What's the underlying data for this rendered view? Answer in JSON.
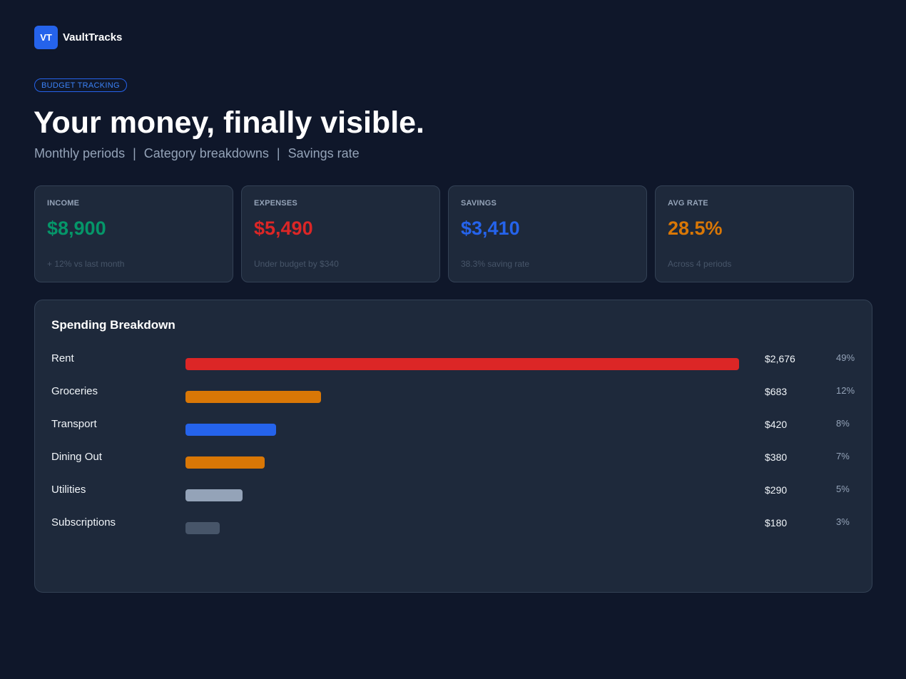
{
  "brand": {
    "logo_text": "VT",
    "name": "VaultTracks"
  },
  "badge": "BUDGET TRACKING",
  "hero": {
    "title": "Your money, finally visible.",
    "subtitle_items": [
      "Monthly periods",
      "Category breakdowns",
      "Savings rate"
    ],
    "separator": "|"
  },
  "stats": [
    {
      "label": "INCOME",
      "value": "$8,900",
      "note": "+ 12% vs last month",
      "color": "#059669"
    },
    {
      "label": "EXPENSES",
      "value": "$5,490",
      "note": "Under budget by $340",
      "color": "#dc2626"
    },
    {
      "label": "SAVINGS",
      "value": "$3,410",
      "note": "38.3% saving rate",
      "color": "#2563eb"
    },
    {
      "label": "AVG RATE",
      "value": "28.5%",
      "note": "Across 4 periods",
      "color": "#d97706"
    }
  ],
  "breakdown": {
    "title": "Spending Breakdown",
    "rows": [
      {
        "label": "Rent",
        "amount": "$2,676",
        "pct": "49%",
        "fraction": 1.0,
        "color": "#dc2626"
      },
      {
        "label": "Groceries",
        "amount": "$683",
        "pct": "12%",
        "fraction": 0.245,
        "color": "#d97706"
      },
      {
        "label": "Transport",
        "amount": "$420",
        "pct": "8%",
        "fraction": 0.164,
        "color": "#2563eb"
      },
      {
        "label": "Dining Out",
        "amount": "$380",
        "pct": "7%",
        "fraction": 0.143,
        "color": "#d97706"
      },
      {
        "label": "Utilities",
        "amount": "$290",
        "pct": "5%",
        "fraction": 0.103,
        "color": "#94a3b8"
      },
      {
        "label": "Subscriptions",
        "amount": "$180",
        "pct": "3%",
        "fraction": 0.062,
        "color": "#475569"
      }
    ]
  }
}
